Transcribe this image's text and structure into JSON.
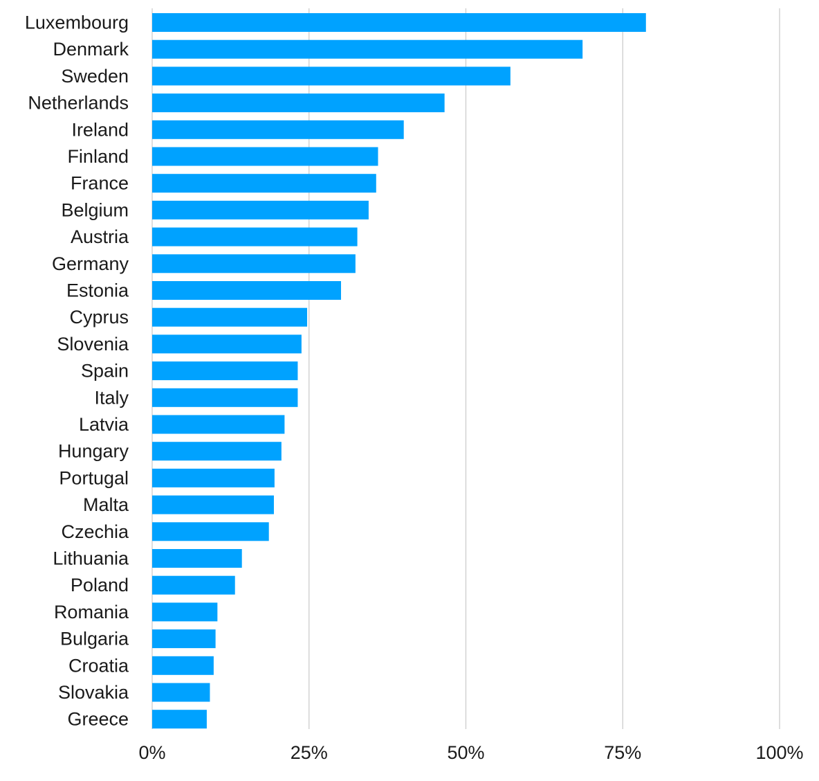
{
  "chart_data": {
    "type": "bar",
    "orientation": "horizontal",
    "title": "",
    "xlabel": "",
    "ylabel": "",
    "categories": [
      "Luxembourg",
      "Denmark",
      "Sweden",
      "Netherlands",
      "Ireland",
      "Finland",
      "France",
      "Belgium",
      "Austria",
      "Germany",
      "Estonia",
      "Cyprus",
      "Slovenia",
      "Spain",
      "Italy",
      "Latvia",
      "Hungary",
      "Portugal",
      "Malta",
      "Czechia",
      "Lithuania",
      "Poland",
      "Romania",
      "Bulgaria",
      "Croatia",
      "Slovakia",
      "Greece"
    ],
    "values": [
      78.7,
      68.6,
      57.1,
      46.6,
      40.1,
      36.0,
      35.7,
      34.5,
      32.7,
      32.4,
      30.1,
      24.7,
      23.8,
      23.2,
      23.2,
      21.1,
      20.6,
      19.5,
      19.4,
      18.6,
      14.3,
      13.2,
      10.4,
      10.1,
      9.8,
      9.2,
      8.7
    ],
    "xlim": [
      0,
      100
    ],
    "x_ticks": [
      "0%",
      "25%",
      "50%",
      "75%",
      "100%"
    ],
    "x_tick_values": [
      0,
      25,
      50,
      75,
      100
    ],
    "grid": "vertical",
    "legend": "none",
    "bar_color": "#00a2ff",
    "grid_color": "#c8c8c8",
    "text_color": "#1a1a1a"
  }
}
